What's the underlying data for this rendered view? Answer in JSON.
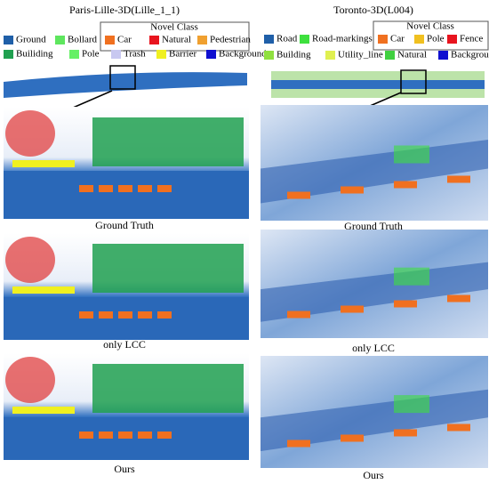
{
  "left": {
    "title": "Paris-Lille-3D(Lille_1_1)",
    "legend": [
      {
        "label": "Ground",
        "color": "#1f5fa8"
      },
      {
        "label": "Bollard",
        "color": "#5ee65e"
      },
      {
        "label": "Builiding",
        "color": "#20a050"
      },
      {
        "label": "Pole",
        "color": "#66f066"
      },
      {
        "label": "Trash",
        "color": "#c8c8f0"
      },
      {
        "label": "Barrier",
        "color": "#f0f020"
      },
      {
        "label": "Background",
        "color": "#1010d0"
      }
    ],
    "novel_title": "Novel  Class",
    "novel": [
      {
        "label": "Car",
        "color": "#f07020"
      },
      {
        "label": "Natural",
        "color": "#e8141e"
      },
      {
        "label": "Pedestrian",
        "color": "#f0a030"
      }
    ],
    "captions": [
      "Ground Truth",
      "only LCC",
      "Ours"
    ]
  },
  "right": {
    "title": "Toronto-3D(L004)",
    "legend": [
      {
        "label": "Road",
        "color": "#1f5fa8"
      },
      {
        "label": "Road-markings",
        "color": "#3ee03e"
      },
      {
        "label": "Building",
        "color": "#90e040"
      },
      {
        "label": "Utility_line",
        "color": "#e0f050"
      },
      {
        "label": "Natural",
        "color": "#40d040"
      },
      {
        "label": "Background",
        "color": "#1010d0"
      }
    ],
    "novel_title": "Novel  Class",
    "novel": [
      {
        "label": "Car",
        "color": "#f07020"
      },
      {
        "label": "Pole",
        "color": "#f0c020"
      },
      {
        "label": "Fence",
        "color": "#e8141e"
      }
    ],
    "captions": [
      "Ground Truth",
      "only LCC",
      "Ours"
    ]
  }
}
